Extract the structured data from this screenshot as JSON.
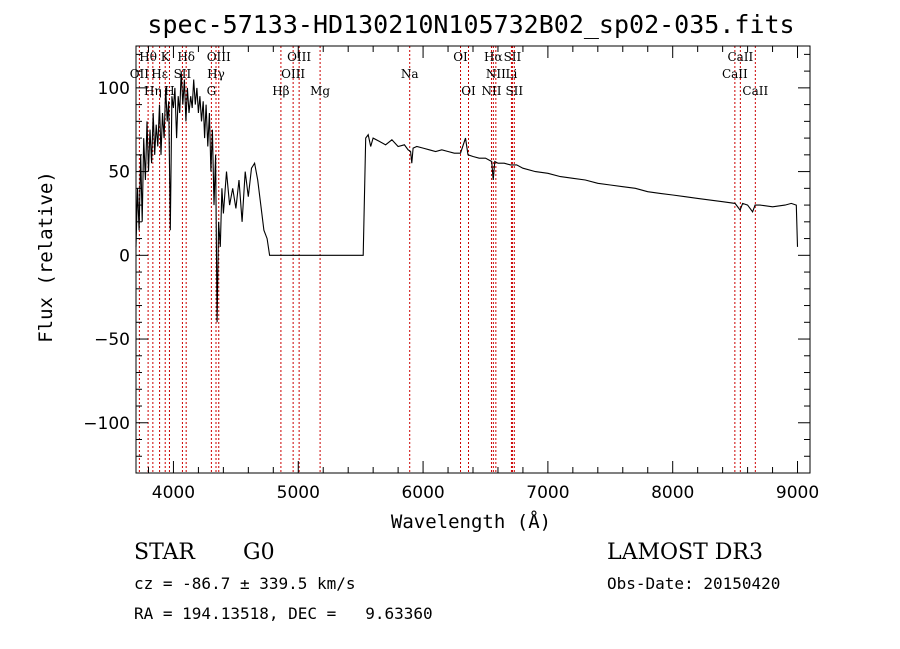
{
  "chart_data": {
    "type": "line",
    "title": "spec-57133-HD130210N105732B02_sp02-035.fits",
    "xlabel": "Wavelength (Å)",
    "ylabel": "Flux (relative)",
    "xlim": [
      3700,
      9100
    ],
    "ylim": [
      -130,
      125
    ],
    "x_ticks": [
      4000,
      5000,
      6000,
      7000,
      8000,
      9000
    ],
    "y_ticks": [
      -100,
      -50,
      0,
      50,
      100
    ],
    "series": [
      {
        "name": "spectrum",
        "points": [
          [
            3700,
            5
          ],
          [
            3712,
            40
          ],
          [
            3725,
            15
          ],
          [
            3738,
            60
          ],
          [
            3750,
            20
          ],
          [
            3762,
            70
          ],
          [
            3775,
            45
          ],
          [
            3788,
            80
          ],
          [
            3800,
            50
          ],
          [
            3812,
            75
          ],
          [
            3825,
            55
          ],
          [
            3838,
            85
          ],
          [
            3850,
            60
          ],
          [
            3862,
            78
          ],
          [
            3875,
            65
          ],
          [
            3888,
            90
          ],
          [
            3900,
            60
          ],
          [
            3912,
            85
          ],
          [
            3925,
            70
          ],
          [
            3938,
            100
          ],
          [
            3950,
            80
          ],
          [
            3962,
            92
          ],
          [
            3975,
            15
          ],
          [
            3988,
            95
          ],
          [
            4000,
            88
          ],
          [
            4012,
            100
          ],
          [
            4025,
            70
          ],
          [
            4038,
            95
          ],
          [
            4050,
            85
          ],
          [
            4062,
            110
          ],
          [
            4075,
            90
          ],
          [
            4088,
            105
          ],
          [
            4100,
            80
          ],
          [
            4112,
            100
          ],
          [
            4125,
            85
          ],
          [
            4138,
            95
          ],
          [
            4150,
            88
          ],
          [
            4162,
            105
          ],
          [
            4175,
            90
          ],
          [
            4188,
            100
          ],
          [
            4200,
            85
          ],
          [
            4212,
            95
          ],
          [
            4225,
            80
          ],
          [
            4238,
            92
          ],
          [
            4250,
            70
          ],
          [
            4262,
            90
          ],
          [
            4275,
            65
          ],
          [
            4288,
            85
          ],
          [
            4300,
            50
          ],
          [
            4312,
            75
          ],
          [
            4325,
            30
          ],
          [
            4338,
            60
          ],
          [
            4350,
            -40
          ],
          [
            4362,
            20
          ],
          [
            4375,
            5
          ],
          [
            4388,
            40
          ],
          [
            4400,
            25
          ],
          [
            4425,
            50
          ],
          [
            4450,
            30
          ],
          [
            4475,
            40
          ],
          [
            4500,
            28
          ],
          [
            4525,
            45
          ],
          [
            4550,
            20
          ],
          [
            4575,
            50
          ],
          [
            4600,
            35
          ],
          [
            4625,
            52
          ],
          [
            4650,
            55
          ],
          [
            4675,
            45
          ],
          [
            4700,
            30
          ],
          [
            4725,
            15
          ],
          [
            4750,
            10
          ],
          [
            4770,
            0
          ],
          [
            5520,
            0
          ],
          [
            5540,
            70
          ],
          [
            5560,
            72
          ],
          [
            5580,
            65
          ],
          [
            5600,
            70
          ],
          [
            5650,
            68
          ],
          [
            5700,
            66
          ],
          [
            5750,
            69
          ],
          [
            5800,
            65
          ],
          [
            5850,
            66
          ],
          [
            5880,
            63
          ],
          [
            5900,
            62
          ],
          [
            5910,
            55
          ],
          [
            5920,
            64
          ],
          [
            5950,
            65
          ],
          [
            6000,
            64
          ],
          [
            6050,
            63
          ],
          [
            6100,
            62
          ],
          [
            6150,
            63
          ],
          [
            6200,
            62
          ],
          [
            6250,
            61
          ],
          [
            6300,
            61
          ],
          [
            6340,
            70
          ],
          [
            6360,
            60
          ],
          [
            6400,
            59
          ],
          [
            6450,
            58
          ],
          [
            6500,
            58
          ],
          [
            6550,
            56
          ],
          [
            6562,
            45
          ],
          [
            6575,
            56
          ],
          [
            6600,
            55
          ],
          [
            6650,
            55
          ],
          [
            6700,
            54
          ],
          [
            6750,
            54
          ],
          [
            6800,
            52
          ],
          [
            6900,
            50
          ],
          [
            7000,
            49
          ],
          [
            7100,
            47
          ],
          [
            7200,
            46
          ],
          [
            7300,
            45
          ],
          [
            7400,
            43
          ],
          [
            7500,
            42
          ],
          [
            7600,
            41
          ],
          [
            7700,
            40
          ],
          [
            7800,
            38
          ],
          [
            7900,
            37
          ],
          [
            8000,
            36
          ],
          [
            8100,
            35
          ],
          [
            8200,
            34
          ],
          [
            8300,
            33
          ],
          [
            8400,
            32
          ],
          [
            8500,
            31
          ],
          [
            8540,
            27
          ],
          [
            8560,
            31
          ],
          [
            8600,
            30
          ],
          [
            8640,
            26
          ],
          [
            8660,
            30
          ],
          [
            8700,
            30
          ],
          [
            8800,
            29
          ],
          [
            8900,
            30
          ],
          [
            8950,
            31
          ],
          [
            8990,
            30
          ],
          [
            9000,
            5
          ]
        ]
      }
    ],
    "spectral_lines": [
      {
        "label": "Hθ",
        "x": 3797,
        "row": 1
      },
      {
        "label": "OII",
        "x": 3727,
        "row": 2
      },
      {
        "label": "Hη",
        "x": 3835,
        "row": 3
      },
      {
        "label": "K",
        "x": 3934,
        "row": 1
      },
      {
        "label": "Hε",
        "x": 3889,
        "row": 2
      },
      {
        "label": "H",
        "x": 3968,
        "row": 3
      },
      {
        "label": "Hδ",
        "x": 4102,
        "row": 1
      },
      {
        "label": "SII",
        "x": 4072,
        "row": 2
      },
      {
        "label": "OIII",
        "x": 4363,
        "row": 1
      },
      {
        "label": "Hγ",
        "x": 4341,
        "row": 2
      },
      {
        "label": "G",
        "x": 4304,
        "row": 3
      },
      {
        "label": "Hβ",
        "x": 4861,
        "row": 3
      },
      {
        "label": "OIII",
        "x": 5007,
        "row": 1
      },
      {
        "label": "OIII",
        "x": 4959,
        "row": 2
      },
      {
        "label": "Mg",
        "x": 5175,
        "row": 3
      },
      {
        "label": "Na",
        "x": 5893,
        "row": 2
      },
      {
        "label": "OI",
        "x": 6300,
        "row": 1
      },
      {
        "label": "OI",
        "x": 6364,
        "row": 3
      },
      {
        "label": "Hα",
        "x": 6563,
        "row": 1
      },
      {
        "label": "SII",
        "x": 6716,
        "row": 1
      },
      {
        "label": "NII",
        "x": 6583,
        "row": 2
      },
      {
        "label": "Li",
        "x": 6708,
        "row": 2
      },
      {
        "label": "NII",
        "x": 6548,
        "row": 3
      },
      {
        "label": "SII",
        "x": 6731,
        "row": 3
      },
      {
        "label": "CaII",
        "x": 8542,
        "row": 1
      },
      {
        "label": "CaII",
        "x": 8498,
        "row": 2
      },
      {
        "label": "CaII",
        "x": 8662,
        "row": 3
      }
    ]
  },
  "info": {
    "class": "STAR",
    "subclass": "G0",
    "survey": "LAMOST DR3",
    "cz": "cz = -86.7 ± 339.5 km/s",
    "radec": "RA = 194.13518, DEC =   9.63360",
    "obsdate": "Obs-Date: 20150420"
  },
  "colors": {
    "spectrum": "#000000",
    "line_markers": "#cc0000",
    "background": "#ffffff"
  }
}
